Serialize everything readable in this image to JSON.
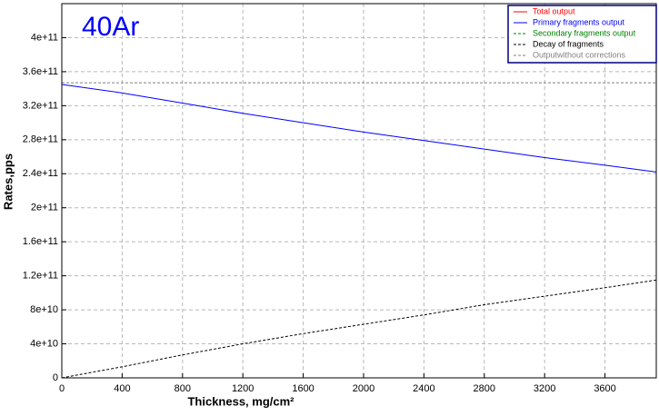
{
  "chart_data": {
    "type": "line",
    "annotation": "40Ar",
    "xlabel": "Thickness, mg/cm²",
    "ylabel": "Rates,pps",
    "x": [
      0,
      400,
      800,
      1200,
      1600,
      2000,
      2400,
      2800,
      3200,
      3600,
      3940
    ],
    "series": [
      {
        "name": "Total output",
        "color": "#ff0000",
        "dash": false,
        "values": [
          null,
          null,
          null,
          null,
          null,
          null,
          null,
          null,
          null,
          null,
          null
        ]
      },
      {
        "name": "Primary fragments output",
        "color": "#0000ff",
        "dash": false,
        "values": [
          345000000000,
          335000000000,
          323000000000,
          311000000000,
          300000000000,
          289000000000,
          279000000000,
          269000000000,
          259000000000,
          250000000000,
          242000000000
        ]
      },
      {
        "name": "Secondary fragments output",
        "color": "#008000",
        "dash": true,
        "values": [
          null,
          null,
          null,
          null,
          null,
          null,
          null,
          null,
          null,
          null,
          null
        ]
      },
      {
        "name": "Decay of fragments",
        "color": "#000000",
        "dash": true,
        "values": [
          0,
          13000000000,
          27000000000,
          40000000000,
          52000000000,
          63000000000,
          74000000000,
          86000000000,
          96000000000,
          106000000000,
          115000000000
        ]
      },
      {
        "name": "Outputwithout corrections",
        "color": "#808080",
        "dash": true,
        "values": [
          347000000000,
          347000000000,
          347000000000,
          347000000000,
          347000000000,
          347000000000,
          347000000000,
          347000000000,
          347000000000,
          347000000000,
          347000000000
        ]
      }
    ],
    "xlim": [
      0,
      3940
    ],
    "ylim": [
      0,
      440000000000
    ],
    "xticks": [
      0,
      400,
      800,
      1200,
      1600,
      2000,
      2400,
      2800,
      3200,
      3600
    ],
    "yticks": [
      0,
      {
        "value": 40000000000,
        "label": "4e+10"
      },
      {
        "value": 80000000000,
        "label": "8e+10"
      },
      {
        "value": 120000000000,
        "label": "1.2e+11"
      },
      {
        "value": 160000000000,
        "label": "1.6e+11"
      },
      {
        "value": 200000000000,
        "label": "2e+11"
      },
      {
        "value": 240000000000,
        "label": "2.4e+11"
      },
      {
        "value": 280000000000,
        "label": "2.8e+11"
      },
      {
        "value": 320000000000,
        "label": "3.2e+11"
      },
      {
        "value": 360000000000,
        "label": "3.6e+11"
      },
      {
        "value": 400000000000,
        "label": "4e+11"
      }
    ],
    "grid": true,
    "legend": "top-right"
  }
}
